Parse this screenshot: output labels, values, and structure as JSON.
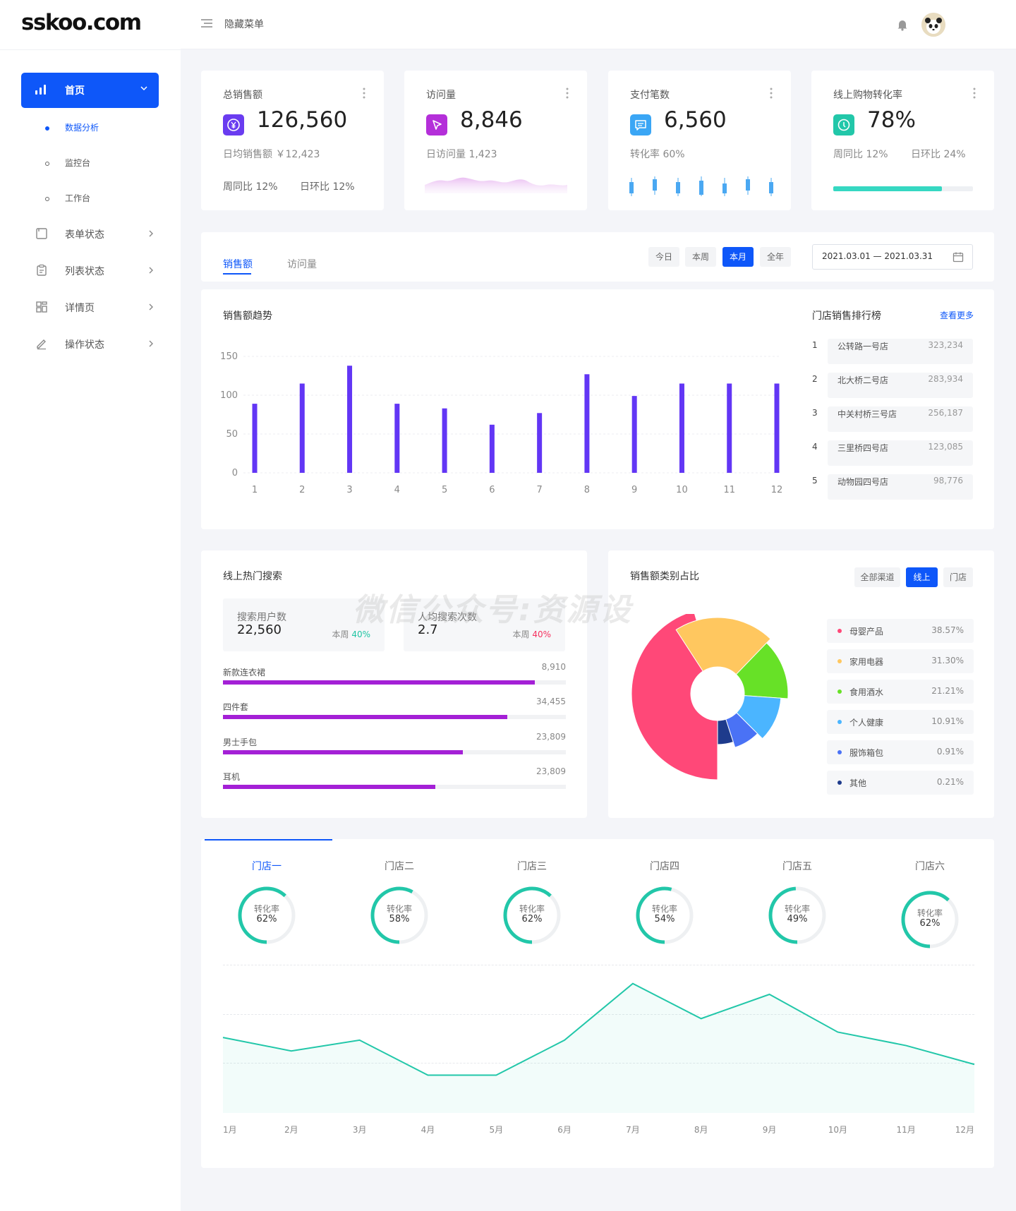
{
  "app": {
    "logo": "sskoo.com"
  },
  "topbar": {
    "menu_toggle_label": "隐藏菜单"
  },
  "sidebar": {
    "home_label": "首页",
    "sub_items": [
      {
        "label": "数据分析",
        "active": true
      },
      {
        "label": "监控台",
        "active": false
      },
      {
        "label": "工作台",
        "active": false
      }
    ],
    "items": [
      {
        "label": "表单状态",
        "icon": "form-icon"
      },
      {
        "label": "列表状态",
        "icon": "clipboard-icon"
      },
      {
        "label": "详情页",
        "icon": "grid-icon"
      },
      {
        "label": "操作状态",
        "icon": "edit-icon"
      }
    ]
  },
  "kpis": [
    {
      "title": "总销售额",
      "value": "126,560",
      "sub": "日均销售额 ￥12,423",
      "yoy": "周同比 12%",
      "mom": "日环比 12%",
      "icon": "yen-icon",
      "color": "#6a3cf0"
    },
    {
      "title": "访问量",
      "value": "8,846",
      "sub": "日访问量 1,423",
      "icon": "cursor-icon",
      "color": "#b42fd9"
    },
    {
      "title": "支付笔数",
      "value": "6,560",
      "sub": "转化率 60%",
      "icon": "chat-icon",
      "color": "#3aa6f5"
    },
    {
      "title": "线上购物转化率",
      "value": "78%",
      "sub": "周同比 12%",
      "sub2": "日环比 24%",
      "progress": 0.78,
      "icon": "compass-icon",
      "color": "#22c7a9"
    }
  ],
  "sales_tabs": {
    "tabs": [
      "销售额",
      "访问量"
    ],
    "active": 0,
    "ranges": [
      "今日",
      "本周",
      "本月",
      "全年"
    ],
    "active_range": 2,
    "date_range": "2021.03.01 — 2021.03.31"
  },
  "sales_trend": {
    "title": "销售额趋势"
  },
  "chart_data": [
    {
      "type": "bar",
      "title": "销售额趋势",
      "categories": [
        "1",
        "2",
        "3",
        "4",
        "5",
        "6",
        "7",
        "8",
        "9",
        "10",
        "11",
        "12"
      ],
      "values": [
        89,
        115,
        138,
        89,
        83,
        62,
        77,
        127,
        99,
        115,
        115,
        115
      ],
      "ylim": [
        0,
        150
      ],
      "yticks": [
        "150",
        "100",
        "50",
        "0"
      ],
      "color": "#6236f5",
      "grid": true
    },
    {
      "type": "pie",
      "title": "销售额类别占比",
      "labels": [
        "母婴产品",
        "家用电器",
        "食用酒水",
        "个人健康",
        "服饰箱包",
        "其他"
      ],
      "values": [
        38.57,
        31.3,
        21.21,
        10.91,
        0.91,
        0.21
      ],
      "colors": [
        "#ff4878",
        "#ffc75f",
        "#67e127",
        "#4bb5ff",
        "#4a72f5",
        "#1e3b8c"
      ]
    },
    {
      "type": "area",
      "categories": [
        "1月",
        "2月",
        "3月",
        "4月",
        "5月",
        "6月",
        "7月",
        "8月",
        "9月",
        "10月",
        "11月",
        "12月"
      ],
      "values": [
        68,
        63,
        67,
        54,
        54,
        67,
        88,
        75,
        84,
        70,
        65,
        58
      ],
      "ylim": [
        40,
        95
      ],
      "color": "#22c7a9"
    }
  ],
  "store_rank": {
    "title": "门店销售排行榜",
    "more_label": "查看更多",
    "rows": [
      {
        "rank": "1",
        "name": "公转路一号店",
        "value": "323,234"
      },
      {
        "rank": "2",
        "name": "北大桥二号店",
        "value": "283,934"
      },
      {
        "rank": "3",
        "name": "中关村桥三号店",
        "value": "256,187"
      },
      {
        "rank": "4",
        "name": "三里桥四号店",
        "value": "123,085"
      },
      {
        "rank": "5",
        "name": "动物园四号店",
        "value": "98,776"
      }
    ]
  },
  "hot_search": {
    "title": "线上热门搜索",
    "stats": [
      {
        "label": "搜索用户数",
        "value": "22,560",
        "week_label": "本周",
        "week_value": "40%",
        "week_color": "#1fc4a3"
      },
      {
        "label": "人均搜索次数",
        "value": "2.7",
        "week_label": "本周",
        "week_value": "40%",
        "week_color": "#f5315f"
      }
    ],
    "keywords": [
      {
        "name": "新款连衣裙",
        "value": "8,910",
        "ratio": 0.91
      },
      {
        "name": "四件套",
        "value": "34,455",
        "ratio": 0.83
      },
      {
        "name": "男士手包",
        "value": "23,809",
        "ratio": 0.7
      },
      {
        "name": "耳机",
        "value": "23,809",
        "ratio": 0.62
      }
    ]
  },
  "category_share": {
    "title": "销售额类别占比",
    "channels": [
      "全部渠道",
      "线上",
      "门店"
    ],
    "active_channel": 1
  },
  "stores": {
    "tabs": [
      {
        "name": "门店一",
        "label": "转化率",
        "rate": "62%",
        "ratio": 0.62
      },
      {
        "name": "门店二",
        "label": "转化率",
        "rate": "58%",
        "ratio": 0.58
      },
      {
        "name": "门店三",
        "label": "转化率",
        "rate": "62%",
        "ratio": 0.62
      },
      {
        "name": "门店四",
        "label": "转化率",
        "rate": "54%",
        "ratio": 0.54
      },
      {
        "name": "门店五",
        "label": "转化率",
        "rate": "49%",
        "ratio": 0.49
      },
      {
        "name": "门店六",
        "label": "转化率",
        "rate": "62%",
        "ratio": 0.62
      }
    ],
    "active": 0
  },
  "watermark": "微信公众号:资源设"
}
